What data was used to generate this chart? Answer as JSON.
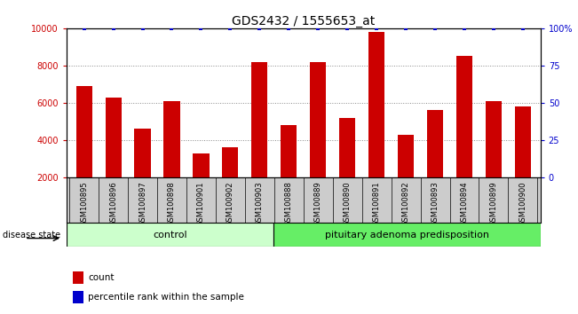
{
  "title": "GDS2432 / 1555653_at",
  "samples": [
    "GSM100895",
    "GSM100896",
    "GSM100897",
    "GSM100898",
    "GSM100901",
    "GSM100902",
    "GSM100903",
    "GSM100888",
    "GSM100889",
    "GSM100890",
    "GSM100891",
    "GSM100892",
    "GSM100893",
    "GSM100894",
    "GSM100899",
    "GSM100900"
  ],
  "counts": [
    6900,
    6300,
    4600,
    6100,
    3300,
    3600,
    8200,
    4800,
    8200,
    5200,
    9800,
    4300,
    5600,
    8500,
    6100,
    5800
  ],
  "percentiles": [
    100,
    100,
    100,
    100,
    100,
    100,
    100,
    100,
    100,
    100,
    100,
    100,
    100,
    100,
    100,
    100
  ],
  "bar_color": "#cc0000",
  "dot_color": "#0000cc",
  "ylim_left": [
    2000,
    10000
  ],
  "ylim_right": [
    0,
    100
  ],
  "yticks_left": [
    2000,
    4000,
    6000,
    8000,
    10000
  ],
  "yticks_right": [
    0,
    25,
    50,
    75,
    100
  ],
  "ytick_labels_right": [
    "0",
    "25",
    "50",
    "75",
    "100%"
  ],
  "groups": [
    {
      "label": "control",
      "start": 0,
      "end": 7,
      "color": "#ccffcc"
    },
    {
      "label": "pituitary adenoma predisposition",
      "start": 7,
      "end": 16,
      "color": "#66ee66"
    }
  ],
  "disease_state_label": "disease state",
  "legend_count_label": "count",
  "legend_percentile_label": "percentile rank within the sample",
  "grid_color": "#888888",
  "bg_color": "#ffffff",
  "plot_bg_color": "#ffffff",
  "title_fontsize": 10,
  "tick_fontsize": 7,
  "label_fontsize": 8
}
